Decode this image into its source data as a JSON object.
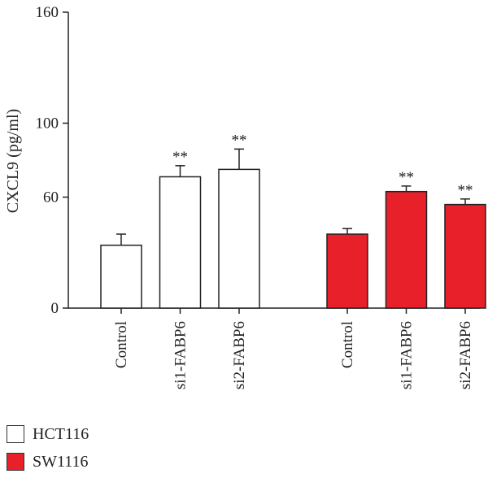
{
  "chart_data": {
    "type": "bar",
    "title": "",
    "ylabel": "CXCL9 (pg/ml)",
    "xlabel": "",
    "ylim": [
      0,
      160
    ],
    "yticks": [
      0,
      60,
      100,
      160
    ],
    "categories": [
      "Control",
      "si1-FABP6",
      "si2-FABP6",
      "Control",
      "si1-FABP6",
      "si2-FABP6"
    ],
    "groups": [
      {
        "name": "HCT116",
        "color": "#ffffff",
        "categories": [
          "Control",
          "si1-FABP6",
          "si2-FABP6"
        ],
        "values": [
          34,
          71,
          75
        ],
        "errors": [
          6,
          6,
          11
        ],
        "significance": [
          "",
          "**",
          "**"
        ]
      },
      {
        "name": "SW1116",
        "color": "#e8202a",
        "categories": [
          "Control",
          "si1-FABP6",
          "si2-FABP6"
        ],
        "values": [
          40,
          63,
          56
        ],
        "errors": [
          3,
          3,
          3
        ],
        "significance": [
          "",
          "**",
          "**"
        ]
      }
    ],
    "legend": {
      "placement": "bottom-left",
      "entries": [
        "HCT116",
        "SW1116"
      ]
    }
  }
}
